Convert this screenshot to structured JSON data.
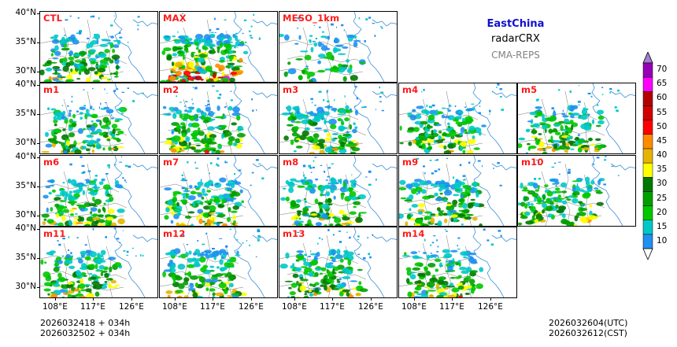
{
  "header": {
    "region": "EastChina",
    "variable": "radarCRX",
    "model": "CMA-REPS"
  },
  "panels": [
    "CTL",
    "MAX",
    "MESO_1km",
    "m1",
    "m2",
    "m3",
    "m4",
    "m5",
    "m6",
    "m7",
    "m8",
    "m9",
    "m10",
    "m11",
    "m12",
    "m13",
    "m14"
  ],
  "axes": {
    "lat_labels": [
      "40°N",
      "35°N",
      "30°N"
    ],
    "lon_labels": [
      "108°E",
      "117°E",
      "126°E"
    ]
  },
  "times": {
    "left_line1": "2026032418  +  034h",
    "left_line2": "2026032502  +  034h",
    "right_line1": "2026032604(UTC)",
    "right_line2": "2026032612(CST)"
  },
  "colorbar": {
    "levels": [
      "10",
      "15",
      "20",
      "25",
      "30",
      "35",
      "40",
      "45",
      "50",
      "55",
      "60",
      "65",
      "70"
    ],
    "colors": [
      "#1e90f0",
      "#00c8c8",
      "#00c800",
      "#00a000",
      "#007800",
      "#ffff00",
      "#e6b400",
      "#ff8c00",
      "#ff0000",
      "#d20000",
      "#b40000",
      "#ff00ff",
      "#9600b4"
    ],
    "under_color": "#ffffff",
    "over_color": "#a080d0"
  }
}
